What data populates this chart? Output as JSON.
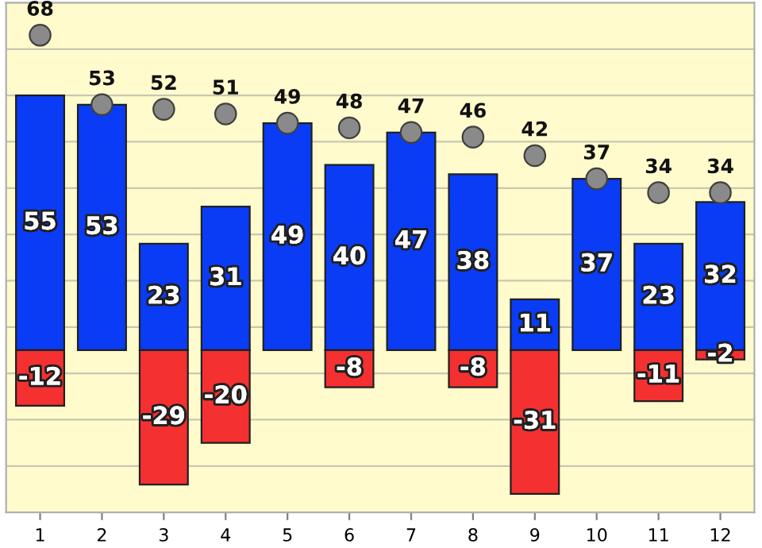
{
  "chart_data": {
    "type": "bar",
    "categories": [
      "1",
      "2",
      "3",
      "4",
      "5",
      "6",
      "7",
      "8",
      "9",
      "10",
      "11",
      "12"
    ],
    "series": [
      {
        "color": "#0a3cf5",
        "values": [
          55,
          53,
          23,
          31,
          49,
          40,
          47,
          38,
          11,
          37,
          23,
          32
        ]
      },
      {
        "color": "#f53030",
        "values": [
          -12,
          null,
          -29,
          -20,
          null,
          -8,
          null,
          -8,
          -31,
          null,
          -11,
          -2
        ]
      },
      {
        "type": "scatter",
        "color": "#8a8a8a",
        "marker": "circle",
        "values": [
          68,
          53,
          52,
          51,
          49,
          48,
          47,
          46,
          42,
          37,
          34,
          34
        ]
      }
    ],
    "ylim": [
      -35,
      75
    ],
    "yticks": [
      {
        "value": -35,
        "label": null
      },
      {
        "value": -25,
        "label": null
      },
      {
        "value": -15,
        "label": null
      },
      {
        "value": -5,
        "label": null
      },
      {
        "value": 5,
        "label": null
      },
      {
        "value": 15,
        "label": null
      },
      {
        "value": 25,
        "label": null
      },
      {
        "value": 35,
        "label": null
      },
      {
        "value": 45,
        "label": null
      },
      {
        "value": 55,
        "label": null
      },
      {
        "value": 65,
        "label": null
      },
      {
        "value": 75,
        "label": null
      }
    ],
    "tick_labels": "x",
    "stacked": true,
    "grid": "y",
    "data_labels": true
  }
}
